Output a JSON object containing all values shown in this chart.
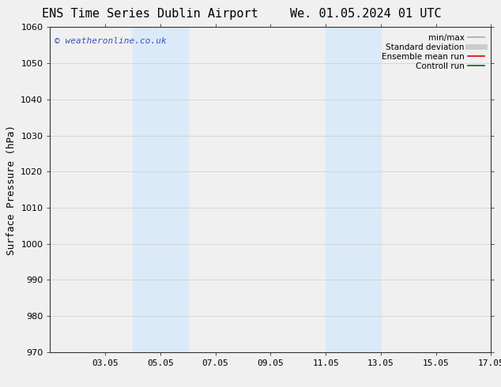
{
  "title_left": "ENS Time Series Dublin Airport",
  "title_right": "We. 01.05.2024 01 UTC",
  "ylabel": "Surface Pressure (hPa)",
  "xlim": [
    1.05,
    17.05
  ],
  "ylim": [
    970,
    1060
  ],
  "yticks": [
    970,
    980,
    990,
    1000,
    1010,
    1020,
    1030,
    1040,
    1050,
    1060
  ],
  "xtick_labels": [
    "03.05",
    "05.05",
    "07.05",
    "09.05",
    "11.05",
    "13.05",
    "15.05",
    "17.05"
  ],
  "xtick_positions": [
    3.05,
    5.05,
    7.05,
    9.05,
    11.05,
    13.05,
    15.05,
    17.05
  ],
  "shaded_bands": [
    {
      "x_start": 4.05,
      "x_end": 6.05
    },
    {
      "x_start": 11.05,
      "x_end": 13.05
    }
  ],
  "shaded_color": "#daeaf8",
  "watermark_text": "© weatheronline.co.uk",
  "watermark_color": "#3355bb",
  "legend_items": [
    {
      "label": "min/max",
      "color": "#aaaaaa",
      "lw": 1.2
    },
    {
      "label": "Standard deviation",
      "color": "#cccccc",
      "lw": 5
    },
    {
      "label": "Ensemble mean run",
      "color": "#dd0000",
      "lw": 1.2
    },
    {
      "label": "Controll run",
      "color": "#006600",
      "lw": 1.2
    }
  ],
  "plot_bg_color": "#f0f0f0",
  "fig_bg_color": "#f0f0f0",
  "title_fontsize": 11,
  "ylabel_fontsize": 9,
  "tick_fontsize": 8,
  "legend_fontsize": 7.5,
  "watermark_fontsize": 8
}
